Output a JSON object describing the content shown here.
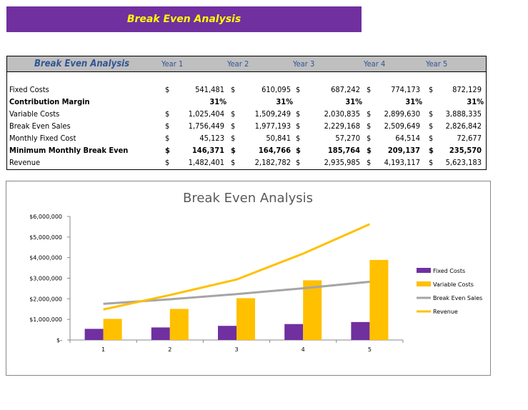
{
  "banner": {
    "title": "Break Even Analysis"
  },
  "table": {
    "title": "Break Even Analysis",
    "years": [
      "Year 1",
      "Year 2",
      "Year 3",
      "Year 4",
      "Year 5"
    ],
    "currency": "$",
    "rows": [
      {
        "label": "Fixed Costs",
        "bold": false,
        "currency": true,
        "values": [
          "541,481",
          "610,095",
          "687,242",
          "774,173",
          "872,129"
        ]
      },
      {
        "label": "Contribution Margin",
        "bold": true,
        "currency": false,
        "values": [
          "31%",
          "31%",
          "31%",
          "31%",
          "31%"
        ]
      },
      {
        "label": "Variable Costs",
        "bold": false,
        "currency": true,
        "values": [
          "1,025,404",
          "1,509,249",
          "2,030,835",
          "2,899,630",
          "3,888,335"
        ]
      },
      {
        "label": "Break Even Sales",
        "bold": false,
        "currency": true,
        "values": [
          "1,756,449",
          "1,977,193",
          "2,229,168",
          "2,509,649",
          "2,826,842"
        ]
      },
      {
        "label": "Monthly Fixed Cost",
        "bold": false,
        "currency": true,
        "values": [
          "45,123",
          "50,841",
          "57,270",
          "64,514",
          "72,677"
        ]
      },
      {
        "label": "Minimum Monthly Break Even",
        "bold": true,
        "currency": true,
        "values": [
          "146,371",
          "164,766",
          "185,764",
          "209,137",
          "235,570"
        ]
      },
      {
        "label": "Revenue",
        "bold": false,
        "currency": true,
        "values": [
          "1,482,401",
          "2,182,782",
          "2,935,985",
          "4,193,117",
          "5,623,183"
        ]
      }
    ]
  },
  "chart_data": {
    "type": "bar+line",
    "title": "Break Even Analysis",
    "categories": [
      "1",
      "2",
      "3",
      "4",
      "5"
    ],
    "ylim": [
      0,
      6000000
    ],
    "yticks": [
      "$-",
      "$1,000,000",
      "$2,000,000",
      "$3,000,000",
      "$4,000,000",
      "$5,000,000",
      "$6,000,000"
    ],
    "grid": false,
    "legend": "right",
    "series": [
      {
        "name": "Fixed Costs",
        "type": "bar",
        "color": "#7030a0",
        "values": [
          541481,
          610095,
          687242,
          774173,
          872129
        ]
      },
      {
        "name": "Variable Costs",
        "type": "bar",
        "color": "#ffc000",
        "values": [
          1025404,
          1509249,
          2030835,
          2899630,
          3888335
        ]
      },
      {
        "name": "Break Even Sales",
        "type": "line",
        "color": "#a5a5a5",
        "values": [
          1756449,
          1977193,
          2229168,
          2509649,
          2826842
        ]
      },
      {
        "name": "Revenue",
        "type": "line",
        "color": "#ffc000",
        "values": [
          1482401,
          2182782,
          2935985,
          4193117,
          5623183
        ]
      }
    ]
  }
}
